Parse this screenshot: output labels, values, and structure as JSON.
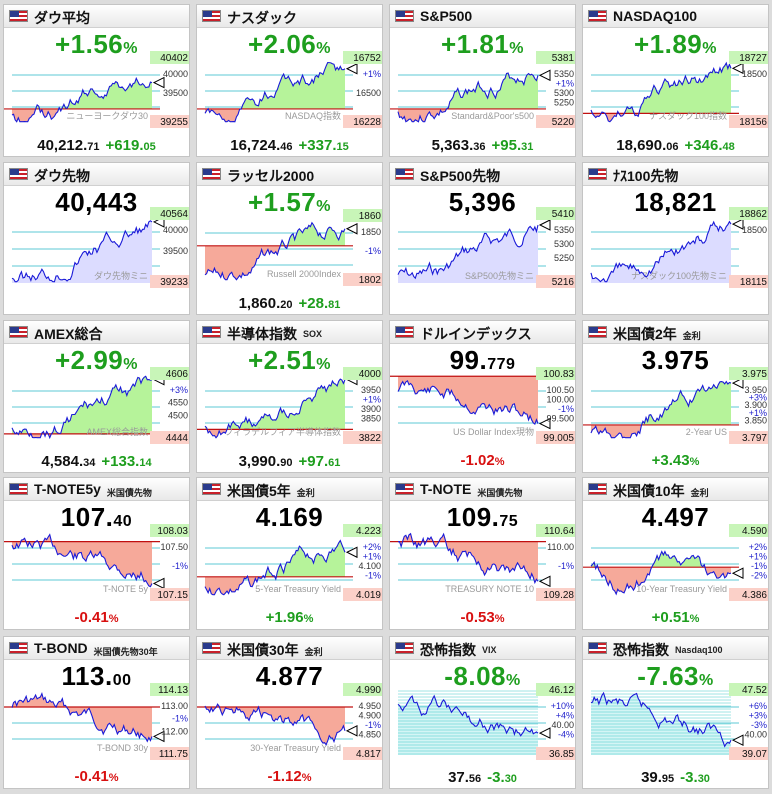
{
  "cards": [
    {
      "name": "ダウ平均",
      "sub": "",
      "big": "+1.56",
      "bigSmall": "%",
      "bigColor": "up",
      "valMain": "40,212.",
      "valSmall": "71",
      "chg": "+619.",
      "chgSmall": "05",
      "chgColor": "up",
      "pct": "",
      "pctSmall": "",
      "pctColor": "",
      "hi": "40402",
      "lo": "39255",
      "ticks": [
        "40000",
        "39500"
      ],
      "water": "ニューヨークダウ30",
      "fill": "both",
      "ref": 0.78,
      "seed": 1,
      "trend": "up"
    },
    {
      "name": "ナスダック",
      "sub": "",
      "big": "+2.06",
      "bigSmall": "%",
      "bigColor": "up",
      "valMain": "16,724.",
      "valSmall": "46",
      "chg": "+337.",
      "chgSmall": "15",
      "chgColor": "up",
      "pct": "",
      "pctSmall": "",
      "pctColor": "",
      "hi": "16752",
      "lo": "16228",
      "ticks": [
        "+1%",
        "16500"
      ],
      "water": "NASDAQ指数",
      "fill": "both",
      "ref": 0.78,
      "seed": 2,
      "trend": "up"
    },
    {
      "name": "S&P500",
      "sub": "",
      "big": "+1.81",
      "bigSmall": "%",
      "bigColor": "up",
      "valMain": "5,363.",
      "valSmall": "36",
      "chg": "+95.",
      "chgSmall": "31",
      "chgColor": "up",
      "pct": "",
      "pctSmall": "",
      "pctColor": "",
      "hi": "5381",
      "lo": "5220",
      "ticks": [
        "5350",
        "+1%",
        "5300",
        "5250"
      ],
      "water": "Standard&Poor's500",
      "fill": "both",
      "ref": 0.78,
      "seed": 3,
      "trend": "up"
    },
    {
      "name": "NASDAQ100",
      "sub": "",
      "big": "+1.89",
      "bigSmall": "%",
      "bigColor": "up",
      "valMain": "18,690.",
      "valSmall": "06",
      "chg": "+346.",
      "chgSmall": "48",
      "chgColor": "up",
      "pct": "",
      "pctSmall": "",
      "pctColor": "",
      "hi": "18727",
      "lo": "18156",
      "ticks": [
        "18500"
      ],
      "water": "ナスダック100指数",
      "fill": "both",
      "ref": 0.85,
      "seed": 4,
      "trend": "up"
    },
    {
      "name": "ダウ先物",
      "sub": "",
      "big": "40,443",
      "bigSmall": "",
      "bigColor": "blk",
      "valMain": "",
      "valSmall": "",
      "chg": "",
      "chgSmall": "",
      "chgColor": "",
      "pct": "",
      "pctSmall": "",
      "pctColor": "",
      "hi": "40564",
      "lo": "39233",
      "ticks": [
        "40000",
        "39500"
      ],
      "water": "ダウ先物ミニ",
      "fill": "lav",
      "ref": 0.0,
      "seed": 5,
      "trend": "up"
    },
    {
      "name": "ラッセル2000",
      "sub": "",
      "big": "+1.57",
      "bigSmall": "%",
      "bigColor": "up",
      "valMain": "1,860.",
      "valSmall": "20",
      "chg": "+28.",
      "chgSmall": "81",
      "chgColor": "up",
      "pct": "",
      "pctSmall": "",
      "pctColor": "",
      "hi": "1860",
      "lo": "1802",
      "ticks": [
        "1850",
        "-1%"
      ],
      "water": "Russell 2000Index",
      "fill": "both",
      "ref": 0.45,
      "seed": 6,
      "trend": "up"
    },
    {
      "name": "S&P500先物",
      "sub": "",
      "big": "5,396",
      "bigSmall": "",
      "bigColor": "blk",
      "valMain": "",
      "valSmall": "",
      "chg": "",
      "chgSmall": "",
      "chgColor": "",
      "pct": "",
      "pctSmall": "",
      "pctColor": "",
      "hi": "5410",
      "lo": "5216",
      "ticks": [
        "5350",
        "5300",
        "5250"
      ],
      "water": "S&P500先物ミニ",
      "fill": "lav",
      "ref": 0.0,
      "seed": 7,
      "trend": "up"
    },
    {
      "name": "ﾅｽ100先物",
      "sub": "",
      "big": "18,821",
      "bigSmall": "",
      "bigColor": "blk",
      "valMain": "",
      "valSmall": "",
      "chg": "",
      "chgSmall": "",
      "chgColor": "",
      "pct": "",
      "pctSmall": "",
      "pctColor": "",
      "hi": "18862",
      "lo": "18115",
      "ticks": [
        "18500"
      ],
      "water": "ナスダック100先物ミニ",
      "fill": "lav",
      "ref": 0.0,
      "seed": 8,
      "trend": "up"
    },
    {
      "name": "AMEX総合",
      "sub": "",
      "big": "+2.99",
      "bigSmall": "%",
      "bigColor": "up",
      "valMain": "4,584.",
      "valSmall": "34",
      "chg": "+133.",
      "chgSmall": "14",
      "chgColor": "up",
      "pct": "",
      "pctSmall": "",
      "pctColor": "",
      "hi": "4606",
      "lo": "4444",
      "ticks": [
        "+3%",
        "4550",
        "4500"
      ],
      "water": "AMEX総合指数",
      "fill": "both",
      "ref": 0.92,
      "seed": 9,
      "trend": "up"
    },
    {
      "name": "半導体指数",
      "sub": "SOX",
      "big": "+2.51",
      "bigSmall": "%",
      "bigColor": "up",
      "valMain": "3,990.",
      "valSmall": "90",
      "chg": "+97.",
      "chgSmall": "61",
      "chgColor": "up",
      "pct": "",
      "pctSmall": "",
      "pctColor": "",
      "hi": "4000",
      "lo": "3822",
      "ticks": [
        "3950",
        "+1%",
        "3900",
        "3850"
      ],
      "water": "フィラデルフィア半導体指数",
      "fill": "both",
      "ref": 0.85,
      "seed": 10,
      "trend": "up"
    },
    {
      "name": "ドルインデックス",
      "sub": "",
      "big": "99.",
      "bigSmall": "779",
      "bigColor": "blk",
      "valMain": "",
      "valSmall": "",
      "chg": "",
      "chgSmall": "",
      "chgColor": "",
      "pct": "-1.02",
      "pctSmall": "%",
      "pctColor": "dn",
      "hi": "100.83",
      "lo": "99.005",
      "ticks": [
        "100.50",
        "100.00",
        "-1%",
        "99.500"
      ],
      "water": "US Dollar Index現物",
      "fill": "red",
      "ref": 0.02,
      "seed": 11,
      "trend": "down"
    },
    {
      "name": "米国債2年",
      "sub": "金利",
      "big": "3.975",
      "bigSmall": "",
      "bigColor": "blk",
      "valMain": "",
      "valSmall": "",
      "chg": "",
      "chgSmall": "",
      "chgColor": "",
      "pct": "+3.43",
      "pctSmall": "%",
      "pctColor": "up",
      "hi": "3.975",
      "lo": "3.797",
      "ticks": [
        "3.950",
        "+3%",
        "3.900",
        "+1%",
        "3.850"
      ],
      "water": "2-Year US",
      "fill": "both",
      "ref": 0.78,
      "seed": 12,
      "trend": "up"
    },
    {
      "name": "T-NOTE5y",
      "sub": "米国債先物",
      "big": "107.",
      "bigSmall": "40",
      "bigColor": "blk",
      "valMain": "",
      "valSmall": "",
      "chg": "",
      "chgSmall": "",
      "chgColor": "",
      "pct": "-0.41",
      "pctSmall": "%",
      "pctColor": "dn",
      "hi": "108.03",
      "lo": "107.15",
      "ticks": [
        "107.50",
        "-1%"
      ],
      "water": "T-NOTE 5y",
      "fill": "red",
      "ref": 0.15,
      "seed": 13,
      "trend": "down"
    },
    {
      "name": "米国債5年",
      "sub": "金利",
      "big": "4.169",
      "bigSmall": "",
      "bigColor": "blk",
      "valMain": "",
      "valSmall": "",
      "chg": "",
      "chgSmall": "",
      "chgColor": "",
      "pct": "+1.96",
      "pctSmall": "%",
      "pctColor": "up",
      "hi": "4.223",
      "lo": "4.019",
      "ticks": [
        "+2%",
        "+1%",
        "4.100",
        "-1%"
      ],
      "water": "5-Year Treasury Yield",
      "fill": "both",
      "ref": 0.7,
      "seed": 14,
      "trend": "up"
    },
    {
      "name": "T-NOTE",
      "sub": "米国債先物",
      "big": "109.",
      "bigSmall": "75",
      "bigColor": "blk",
      "valMain": "",
      "valSmall": "",
      "chg": "",
      "chgSmall": "",
      "chgColor": "",
      "pct": "-0.53",
      "pctSmall": "%",
      "pctColor": "dn",
      "hi": "110.64",
      "lo": "109.28",
      "ticks": [
        "110.00",
        "-1%"
      ],
      "water": "TREASURY NOTE 10",
      "fill": "red",
      "ref": 0.15,
      "seed": 15,
      "trend": "down"
    },
    {
      "name": "米国債10年",
      "sub": "金利",
      "big": "4.497",
      "bigSmall": "",
      "bigColor": "blk",
      "valMain": "",
      "valSmall": "",
      "chg": "",
      "chgSmall": "",
      "chgColor": "",
      "pct": "+0.51",
      "pctSmall": "%",
      "pctColor": "up",
      "hi": "4.590",
      "lo": "4.386",
      "ticks": [
        "+2%",
        "+1%",
        "-1%",
        "-2%"
      ],
      "water": "10-Year Treasury Yield",
      "fill": "both",
      "ref": 0.55,
      "seed": 16,
      "trend": "flat"
    },
    {
      "name": "T-BOND",
      "sub": "米国債先物30年",
      "big": "113.",
      "bigSmall": "00",
      "bigColor": "blk",
      "valMain": "",
      "valSmall": "",
      "chg": "",
      "chgSmall": "",
      "chgColor": "",
      "pct": "-0.41",
      "pctSmall": "%",
      "pctColor": "dn",
      "hi": "114.13",
      "lo": "111.75",
      "ticks": [
        "113.00",
        "-1%",
        "112.00"
      ],
      "water": "T-BOND 30y",
      "fill": "red",
      "ref": 0.25,
      "seed": 17,
      "trend": "down"
    },
    {
      "name": "米国債30年",
      "sub": "金利",
      "big": "4.877",
      "bigSmall": "",
      "bigColor": "blk",
      "valMain": "",
      "valSmall": "",
      "chg": "",
      "chgSmall": "",
      "chgColor": "",
      "pct": "-1.12",
      "pctSmall": "%",
      "pctColor": "dn",
      "hi": "4.990",
      "lo": "4.817",
      "ticks": [
        "4.950",
        "4.900",
        "-1%",
        "4.850"
      ],
      "water": "30-Year Treasury Yield",
      "fill": "red",
      "ref": 0.25,
      "seed": 18,
      "trend": "down"
    },
    {
      "name": "恐怖指数",
      "sub": "VIX",
      "big": "-8.08",
      "bigSmall": "%",
      "bigColor": "up",
      "valMain": "37.",
      "valSmall": "56",
      "chg": "-3.",
      "chgSmall": "30",
      "chgColor": "up",
      "pct": "",
      "pctSmall": "",
      "pctColor": "",
      "hi": "46.12",
      "lo": "36.85",
      "ticks": [
        "+10%",
        "+4%",
        "40.00",
        "-4%"
      ],
      "water": "",
      "fill": "vix",
      "ref": 0.6,
      "seed": 19,
      "trend": "down"
    },
    {
      "name": "恐怖指数",
      "sub": "Nasdaq100",
      "big": "-7.63",
      "bigSmall": "%",
      "bigColor": "up",
      "valMain": "39.",
      "valSmall": "95",
      "chg": "-3.",
      "chgSmall": "30",
      "chgColor": "up",
      "pct": "",
      "pctSmall": "",
      "pctColor": "",
      "hi": "47.52",
      "lo": "39.07",
      "ticks": [
        "+6%",
        "+3%",
        "-3%",
        "40.00"
      ],
      "water": "",
      "fill": "vix",
      "ref": 0.5,
      "seed": 20,
      "trend": "down"
    }
  ],
  "colors": {
    "up": "#1e9e1e",
    "down": "#d81010",
    "line": "#1a1ad8",
    "greenFill": "#b6f39a",
    "redFill": "#f6a99a",
    "lavFill": "#dcdcff"
  }
}
